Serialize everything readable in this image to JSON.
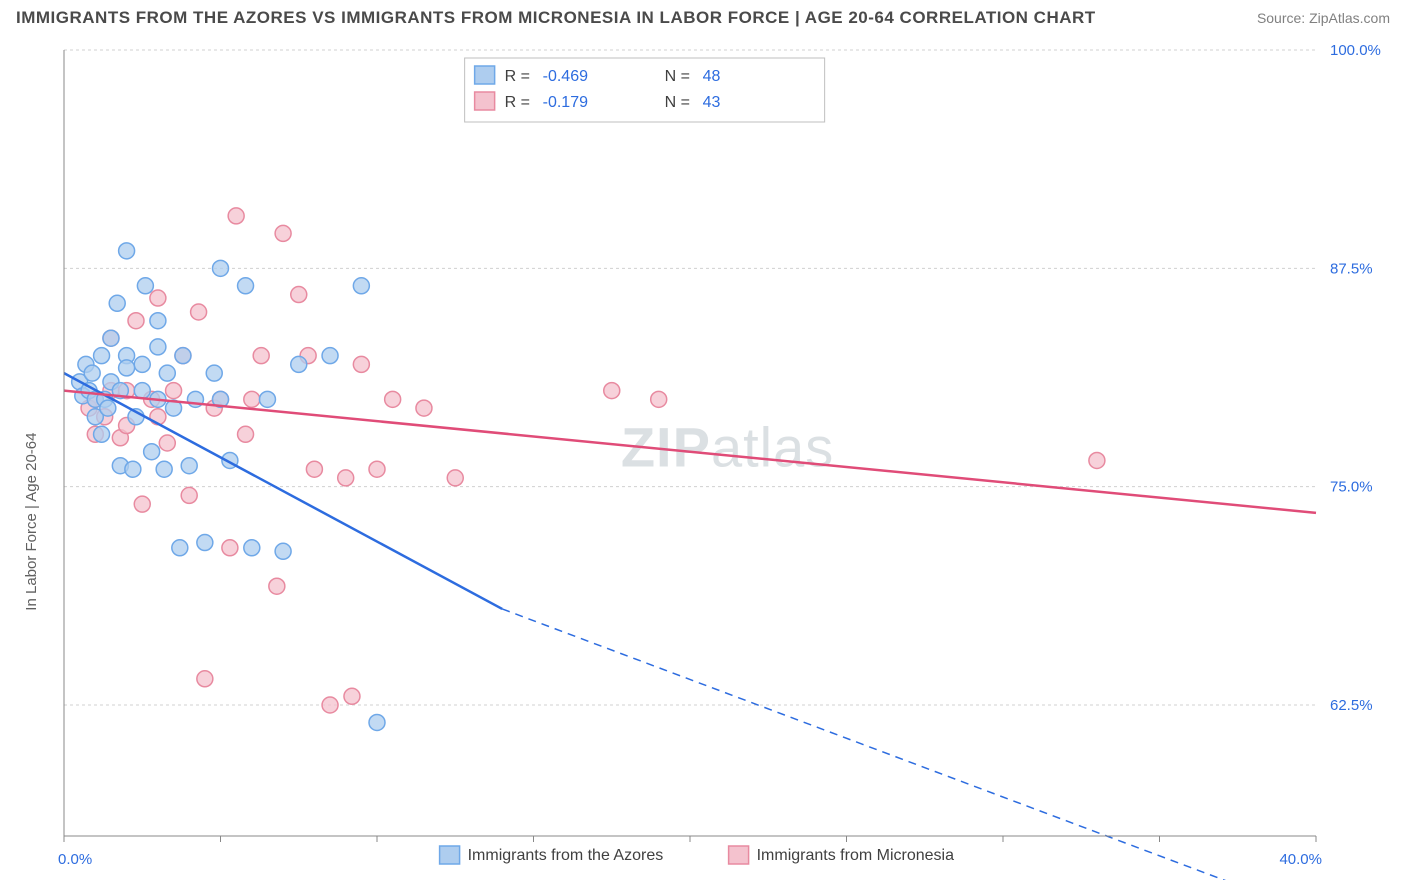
{
  "title": "IMMIGRANTS FROM THE AZORES VS IMMIGRANTS FROM MICRONESIA IN LABOR FORCE | AGE 20-64 CORRELATION CHART",
  "source_label": "Source: ZipAtlas.com",
  "ylabel": "In Labor Force | Age 20-64",
  "watermark": "ZIPatlas",
  "chart": {
    "type": "scatter-with-regression",
    "background_color": "#ffffff",
    "grid_color": "#d0d0d0",
    "axis_color": "#888888",
    "tick_label_color": "#2d6cdf",
    "x": {
      "min": 0.0,
      "max": 40.0,
      "tick_step": 5.0,
      "label_min": "0.0%",
      "label_max": "40.0%"
    },
    "y": {
      "min": 55.0,
      "max": 100.0,
      "ticks": [
        62.5,
        75.0,
        87.5,
        100.0
      ],
      "tick_labels": [
        "62.5%",
        "75.0%",
        "87.5%",
        "100.0%"
      ]
    },
    "series": [
      {
        "name": "Immigrants from the Azores",
        "color_fill": "#aecdef",
        "color_stroke": "#6fa8e8",
        "line_color": "#2d6cdf",
        "marker_radius": 8,
        "line_width": 2.5,
        "R": "-0.469",
        "N": "48",
        "reg_start": [
          0.0,
          81.5
        ],
        "reg_solid_end": [
          14.0,
          68.0
        ],
        "reg_dash_end": [
          40.0,
          50.5
        ],
        "points": [
          [
            0.5,
            81.0
          ],
          [
            0.6,
            80.2
          ],
          [
            0.7,
            82.0
          ],
          [
            0.8,
            80.5
          ],
          [
            0.9,
            81.5
          ],
          [
            1.0,
            79.0
          ],
          [
            1.0,
            80.0
          ],
          [
            1.2,
            82.5
          ],
          [
            1.3,
            80.0
          ],
          [
            1.4,
            79.5
          ],
          [
            1.5,
            83.5
          ],
          [
            1.5,
            81.0
          ],
          [
            1.7,
            85.5
          ],
          [
            1.8,
            76.2
          ],
          [
            1.8,
            80.5
          ],
          [
            2.0,
            82.5
          ],
          [
            2.0,
            88.5
          ],
          [
            2.2,
            76.0
          ],
          [
            2.3,
            79.0
          ],
          [
            2.5,
            80.5
          ],
          [
            2.5,
            82.0
          ],
          [
            2.6,
            86.5
          ],
          [
            2.8,
            77.0
          ],
          [
            3.0,
            80.0
          ],
          [
            3.0,
            83.0
          ],
          [
            3.2,
            76.0
          ],
          [
            3.3,
            81.5
          ],
          [
            3.5,
            79.5
          ],
          [
            3.7,
            71.5
          ],
          [
            3.8,
            82.5
          ],
          [
            4.0,
            76.2
          ],
          [
            4.2,
            80.0
          ],
          [
            4.5,
            71.8
          ],
          [
            4.8,
            81.5
          ],
          [
            5.0,
            80.0
          ],
          [
            5.0,
            87.5
          ],
          [
            5.3,
            76.5
          ],
          [
            5.8,
            86.5
          ],
          [
            6.0,
            71.5
          ],
          [
            6.5,
            80.0
          ],
          [
            7.0,
            71.3
          ],
          [
            7.5,
            82.0
          ],
          [
            8.5,
            82.5
          ],
          [
            9.5,
            86.5
          ],
          [
            10.0,
            61.5
          ],
          [
            3.0,
            84.5
          ],
          [
            2.0,
            81.8
          ],
          [
            1.2,
            78.0
          ]
        ]
      },
      {
        "name": "Immigrants from Micronesia",
        "color_fill": "#f4c2ce",
        "color_stroke": "#e88aa0",
        "line_color": "#e04c78",
        "marker_radius": 8,
        "line_width": 2.5,
        "R": "-0.179",
        "N": "43",
        "reg_start": [
          0.0,
          80.5
        ],
        "reg_solid_end": [
          40.0,
          73.5
        ],
        "reg_dash_end": null,
        "points": [
          [
            0.8,
            79.5
          ],
          [
            1.0,
            80.0
          ],
          [
            1.0,
            78.0
          ],
          [
            1.3,
            79.0
          ],
          [
            1.5,
            83.5
          ],
          [
            1.5,
            80.5
          ],
          [
            1.8,
            77.8
          ],
          [
            2.0,
            80.5
          ],
          [
            2.0,
            78.5
          ],
          [
            2.3,
            84.5
          ],
          [
            2.5,
            74.0
          ],
          [
            2.8,
            80.0
          ],
          [
            3.0,
            85.8
          ],
          [
            3.0,
            79.0
          ],
          [
            3.3,
            77.5
          ],
          [
            3.5,
            80.5
          ],
          [
            3.8,
            82.5
          ],
          [
            4.0,
            74.5
          ],
          [
            4.3,
            85.0
          ],
          [
            4.5,
            64.0
          ],
          [
            4.8,
            79.5
          ],
          [
            5.0,
            80.0
          ],
          [
            5.3,
            71.5
          ],
          [
            5.5,
            90.5
          ],
          [
            5.8,
            78.0
          ],
          [
            6.0,
            80.0
          ],
          [
            6.3,
            82.5
          ],
          [
            6.8,
            69.3
          ],
          [
            7.0,
            89.5
          ],
          [
            7.5,
            86.0
          ],
          [
            7.8,
            82.5
          ],
          [
            8.0,
            76.0
          ],
          [
            8.5,
            62.5
          ],
          [
            9.0,
            75.5
          ],
          [
            9.5,
            82.0
          ],
          [
            10.0,
            76.0
          ],
          [
            10.5,
            80.0
          ],
          [
            11.5,
            79.5
          ],
          [
            12.5,
            75.5
          ],
          [
            17.5,
            80.5
          ],
          [
            19.0,
            80.0
          ],
          [
            33.0,
            76.5
          ],
          [
            9.2,
            63.0
          ]
        ]
      }
    ],
    "bottom_legend": [
      {
        "label": "Immigrants from the Azores",
        "fill": "#aecdef",
        "stroke": "#6fa8e8"
      },
      {
        "label": "Immigrants from Micronesia",
        "fill": "#f4c2ce",
        "stroke": "#e88aa0"
      }
    ]
  }
}
